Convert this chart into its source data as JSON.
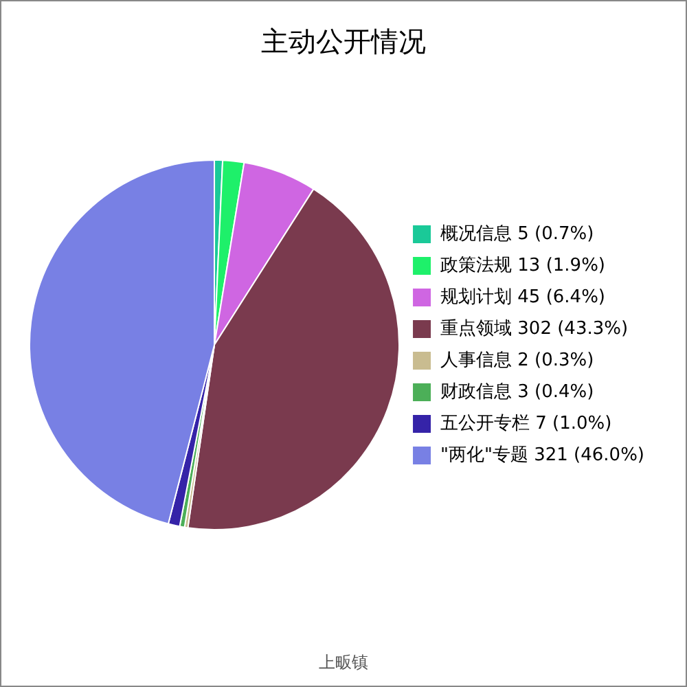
{
  "chart_data": {
    "type": "pie",
    "title": "主动公开情况",
    "categories": [
      "概况信息",
      "政策法规",
      "规划计划",
      "重点领域",
      "人事信息",
      "财政信息",
      "五公开专栏",
      "\"两化\"专题"
    ],
    "values": [
      5,
      13,
      45,
      302,
      2,
      3,
      7,
      321
    ],
    "value_labels": [
      "5 (0.7%)",
      "13 (1.9%)",
      "45 (6.4%)",
      "302 (43.3%)",
      "2 (0.3%)",
      "3 (0.4%)",
      "7 (1.0%)",
      "321 (46.0%)"
    ],
    "colors": [
      "#1ac998",
      "#1ef06a",
      "#cf66e2",
      "#7a3a4e",
      "#c9bc90",
      "#4caf58",
      "#3523a8",
      "#7880e4"
    ],
    "legend": "right",
    "annotations": [
      "上畈镇"
    ]
  }
}
